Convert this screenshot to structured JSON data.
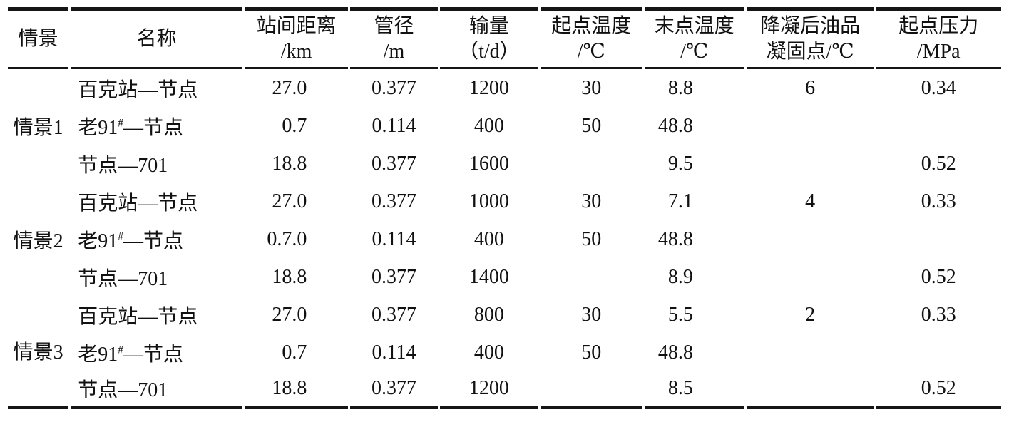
{
  "table": {
    "headers": [
      {
        "line1": "情景",
        "line2": ""
      },
      {
        "line1": "名称",
        "line2": ""
      },
      {
        "line1": "站间距离",
        "line2": "/km"
      },
      {
        "line1": "管径",
        "line2": "/m"
      },
      {
        "line1": "输量",
        "line2": "（t/d）"
      },
      {
        "line1": "起点温度",
        "line2": "/℃"
      },
      {
        "line1": "末点温度",
        "line2": "/℃"
      },
      {
        "line1": "降凝后油品",
        "line2": "凝固点/℃"
      },
      {
        "line1": "起点压力",
        "line2": "/MPa"
      }
    ],
    "groups": [
      {
        "scenario": "情景1",
        "rows": [
          {
            "name_pre": "百克站—节点",
            "name_sup": "",
            "name_post": "",
            "distance_km": "27.0",
            "diameter_m": "0.377",
            "throughput_tpd": "1200",
            "start_temp_c": "30",
            "end_temp_c": "8.8",
            "pour_point_c": "6",
            "start_pressure_mpa": "0.34"
          },
          {
            "name_pre": "老91",
            "name_sup": "#",
            "name_post": "—节点",
            "distance_km": "0.7",
            "diameter_m": "0.114",
            "throughput_tpd": "400",
            "start_temp_c": "50",
            "end_temp_c": "48.8",
            "pour_point_c": "",
            "start_pressure_mpa": ""
          },
          {
            "name_pre": "节点—701",
            "name_sup": "",
            "name_post": "",
            "distance_km": "18.8",
            "diameter_m": "0.377",
            "throughput_tpd": "1600",
            "start_temp_c": "",
            "end_temp_c": "9.5",
            "pour_point_c": "",
            "start_pressure_mpa": "0.52"
          }
        ]
      },
      {
        "scenario": "情景2",
        "rows": [
          {
            "name_pre": "百克站—节点",
            "name_sup": "",
            "name_post": "",
            "distance_km": "27.0",
            "diameter_m": "0.377",
            "throughput_tpd": "1000",
            "start_temp_c": "30",
            "end_temp_c": "7.1",
            "pour_point_c": "4",
            "start_pressure_mpa": "0.33"
          },
          {
            "name_pre": "老91",
            "name_sup": "#",
            "name_post": "—节点",
            "distance_km": "0.7.0",
            "diameter_m": "0.114",
            "throughput_tpd": "400",
            "start_temp_c": "50",
            "end_temp_c": "48.8",
            "pour_point_c": "",
            "start_pressure_mpa": ""
          },
          {
            "name_pre": "节点—701",
            "name_sup": "",
            "name_post": "",
            "distance_km": "18.8",
            "diameter_m": "0.377",
            "throughput_tpd": "1400",
            "start_temp_c": "",
            "end_temp_c": "8.9",
            "pour_point_c": "",
            "start_pressure_mpa": "0.52"
          }
        ]
      },
      {
        "scenario": "情景3",
        "rows": [
          {
            "name_pre": "百克站—节点",
            "name_sup": "",
            "name_post": "",
            "distance_km": "27.0",
            "diameter_m": "0.377",
            "throughput_tpd": "800",
            "start_temp_c": "30",
            "end_temp_c": "5.5",
            "pour_point_c": "2",
            "start_pressure_mpa": "0.33"
          },
          {
            "name_pre": "老91",
            "name_sup": "#",
            "name_post": "—节点",
            "distance_km": "0.7",
            "diameter_m": "0.114",
            "throughput_tpd": "400",
            "start_temp_c": "50",
            "end_temp_c": "48.8",
            "pour_point_c": "",
            "start_pressure_mpa": ""
          },
          {
            "name_pre": "节点—701",
            "name_sup": "",
            "name_post": "",
            "distance_km": "18.8",
            "diameter_m": "0.377",
            "throughput_tpd": "1200",
            "start_temp_c": "",
            "end_temp_c": "8.5",
            "pour_point_c": "",
            "start_pressure_mpa": "0.52"
          }
        ]
      }
    ],
    "rule_color": "#151515"
  }
}
